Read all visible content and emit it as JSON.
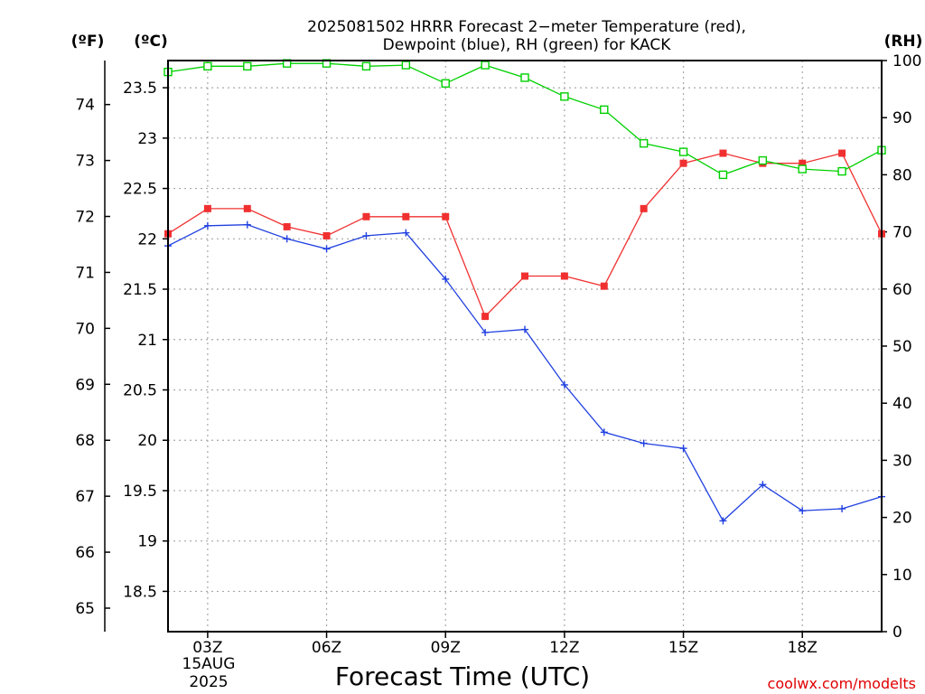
{
  "chart_data": {
    "type": "line",
    "title_line1": "2025081502 HRRR Forecast 2−meter Temperature (red),",
    "title_line2": "Dewpoint (blue), RH (green) for KACK",
    "xlabel": "Forecast Time (UTC)",
    "credit": "coolwx.com/modelts",
    "units": {
      "fahrenheit": "(ºF)",
      "celsius": "(ºC)",
      "rh": "(RH)"
    },
    "x_hours": [
      2,
      3,
      4,
      5,
      6,
      7,
      8,
      9,
      10,
      11,
      12,
      13,
      14,
      15,
      16,
      17,
      18,
      19,
      20
    ],
    "xlim": [
      2,
      20
    ],
    "x_ticks": [
      {
        "hour": 3,
        "label": "03Z"
      },
      {
        "hour": 6,
        "label": "06Z"
      },
      {
        "hour": 9,
        "label": "09Z"
      },
      {
        "hour": 12,
        "label": "12Z"
      },
      {
        "hour": 15,
        "label": "15Z"
      },
      {
        "hour": 18,
        "label": "18Z"
      }
    ],
    "date_label": [
      "15AUG",
      "2025"
    ],
    "celsius_ticks": [
      18.5,
      19,
      19.5,
      20,
      20.5,
      21,
      21.5,
      22,
      22.5,
      23,
      23.5
    ],
    "celsius_tick_labels": [
      "18.5",
      "19",
      "19.5",
      "20",
      "20.5",
      "21",
      "21.5",
      "22",
      "22.5",
      "23",
      "23.5"
    ],
    "fahrenheit_ticks": [
      65,
      66,
      67,
      68,
      69,
      70,
      71,
      72,
      73,
      74
    ],
    "rh_ticks": [
      0,
      10,
      20,
      30,
      40,
      50,
      60,
      70,
      80,
      90,
      100
    ],
    "ylim_celsius": [
      18.1,
      23.77
    ],
    "ylim_rh": [
      0,
      100
    ],
    "series": [
      {
        "name": "Temperature",
        "color": "#f03030",
        "marker": "filled-square",
        "axis": "celsius",
        "values": [
          22.05,
          22.3,
          22.3,
          22.12,
          22.03,
          22.22,
          22.22,
          22.22,
          21.23,
          21.63,
          21.63,
          21.53,
          22.3,
          22.75,
          22.85,
          22.75,
          22.75,
          22.85,
          22.05
        ]
      },
      {
        "name": "Dewpoint",
        "color": "#2040e0",
        "marker": "plus",
        "axis": "celsius",
        "values": [
          21.93,
          22.13,
          22.14,
          22.0,
          21.9,
          22.03,
          22.06,
          21.6,
          21.07,
          21.1,
          20.55,
          20.08,
          19.97,
          19.92,
          19.2,
          19.56,
          19.3,
          19.32,
          19.44
        ]
      },
      {
        "name": "RH",
        "color": "#00d000",
        "marker": "open-square",
        "axis": "rh",
        "values": [
          98,
          99,
          99,
          99.5,
          99.5,
          99,
          99.2,
          96,
          99.2,
          97,
          93.7,
          91.4,
          85.5,
          84,
          80,
          82.5,
          81,
          80.6,
          84.3
        ]
      }
    ]
  }
}
